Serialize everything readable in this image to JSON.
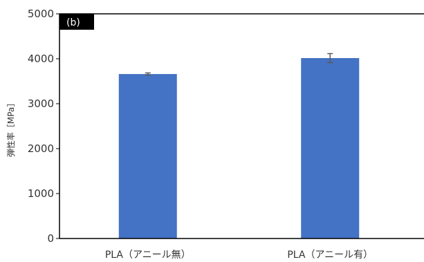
{
  "panel_label": "(b)",
  "chart_data": {
    "type": "bar",
    "title": "",
    "xlabel": "",
    "ylabel": "弾性率［MPa］",
    "categories": [
      "PLA（アニール無）",
      "PLA（アニール有）"
    ],
    "values": [
      3660,
      4015
    ],
    "error": [
      25,
      100
    ],
    "ylim": [
      0,
      5000
    ],
    "yticks": [
      0,
      1000,
      2000,
      3000,
      4000,
      5000
    ],
    "grid": false,
    "legend": "none",
    "bar_color": "#4472C4",
    "error_color": "#595959",
    "axis_color": "#000000"
  }
}
